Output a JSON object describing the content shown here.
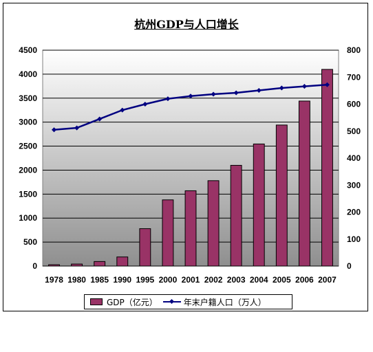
{
  "chart_data": {
    "type": "bar+line",
    "title": "杭州GDP与人口增长",
    "categories": [
      "1978",
      "1980",
      "1985",
      "1990",
      "1995",
      "2000",
      "2001",
      "2002",
      "2003",
      "2004",
      "2005",
      "2006",
      "2007"
    ],
    "series": [
      {
        "name": "GDP（亿元）",
        "type": "bar",
        "axis": "left",
        "color": "#993366",
        "values": [
          28,
          42,
          95,
          190,
          780,
          1380,
          1570,
          1780,
          2100,
          2545,
          2940,
          3440,
          4100
        ]
      },
      {
        "name": "年末户籍人口（万人）",
        "type": "line",
        "axis": "right",
        "color": "#000080",
        "values": [
          505,
          512,
          545,
          578,
          600,
          620,
          630,
          637,
          642,
          651,
          660,
          666,
          672
        ]
      }
    ],
    "y_left": {
      "min": 0,
      "max": 4500,
      "ticks": [
        "0",
        "500",
        "1000",
        "1500",
        "2000",
        "2500",
        "3000",
        "3500",
        "4000",
        "4500"
      ]
    },
    "y_right": {
      "min": 0,
      "max": 800,
      "ticks": [
        "0",
        "100",
        "200",
        "300",
        "400",
        "500",
        "600",
        "700",
        "800"
      ]
    },
    "grid": true,
    "legend_position": "bottom"
  }
}
